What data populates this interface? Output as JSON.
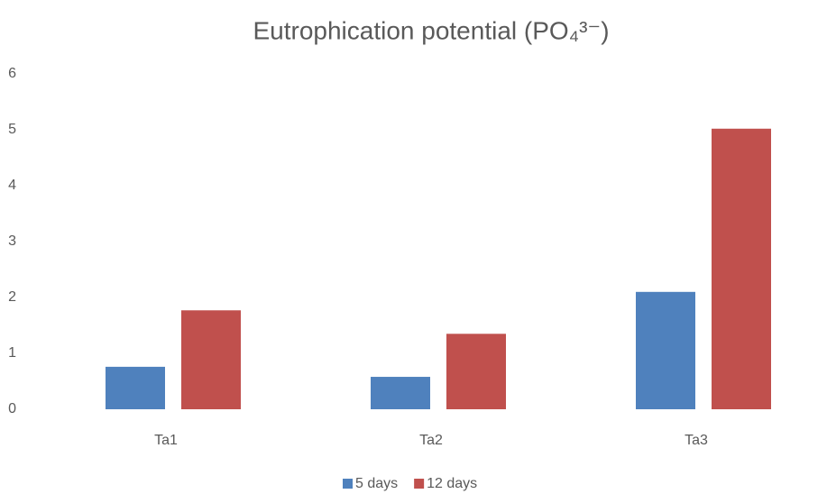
{
  "chart_data": {
    "type": "bar",
    "title": "Eutrophication potential (PO₄³⁻)",
    "categories": [
      "Ta1",
      "Ta2",
      "Ta3"
    ],
    "series": [
      {
        "name": "5 days",
        "color": "#4f81bd",
        "values": [
          0.76,
          0.58,
          2.1
        ]
      },
      {
        "name": "12 days",
        "color": "#c0504d",
        "values": [
          1.77,
          1.35,
          5.02
        ]
      }
    ],
    "ylim": [
      0,
      6
    ],
    "yticks": [
      0,
      1,
      2,
      3,
      4,
      5,
      6
    ],
    "grid": true,
    "legend": "bottom"
  }
}
